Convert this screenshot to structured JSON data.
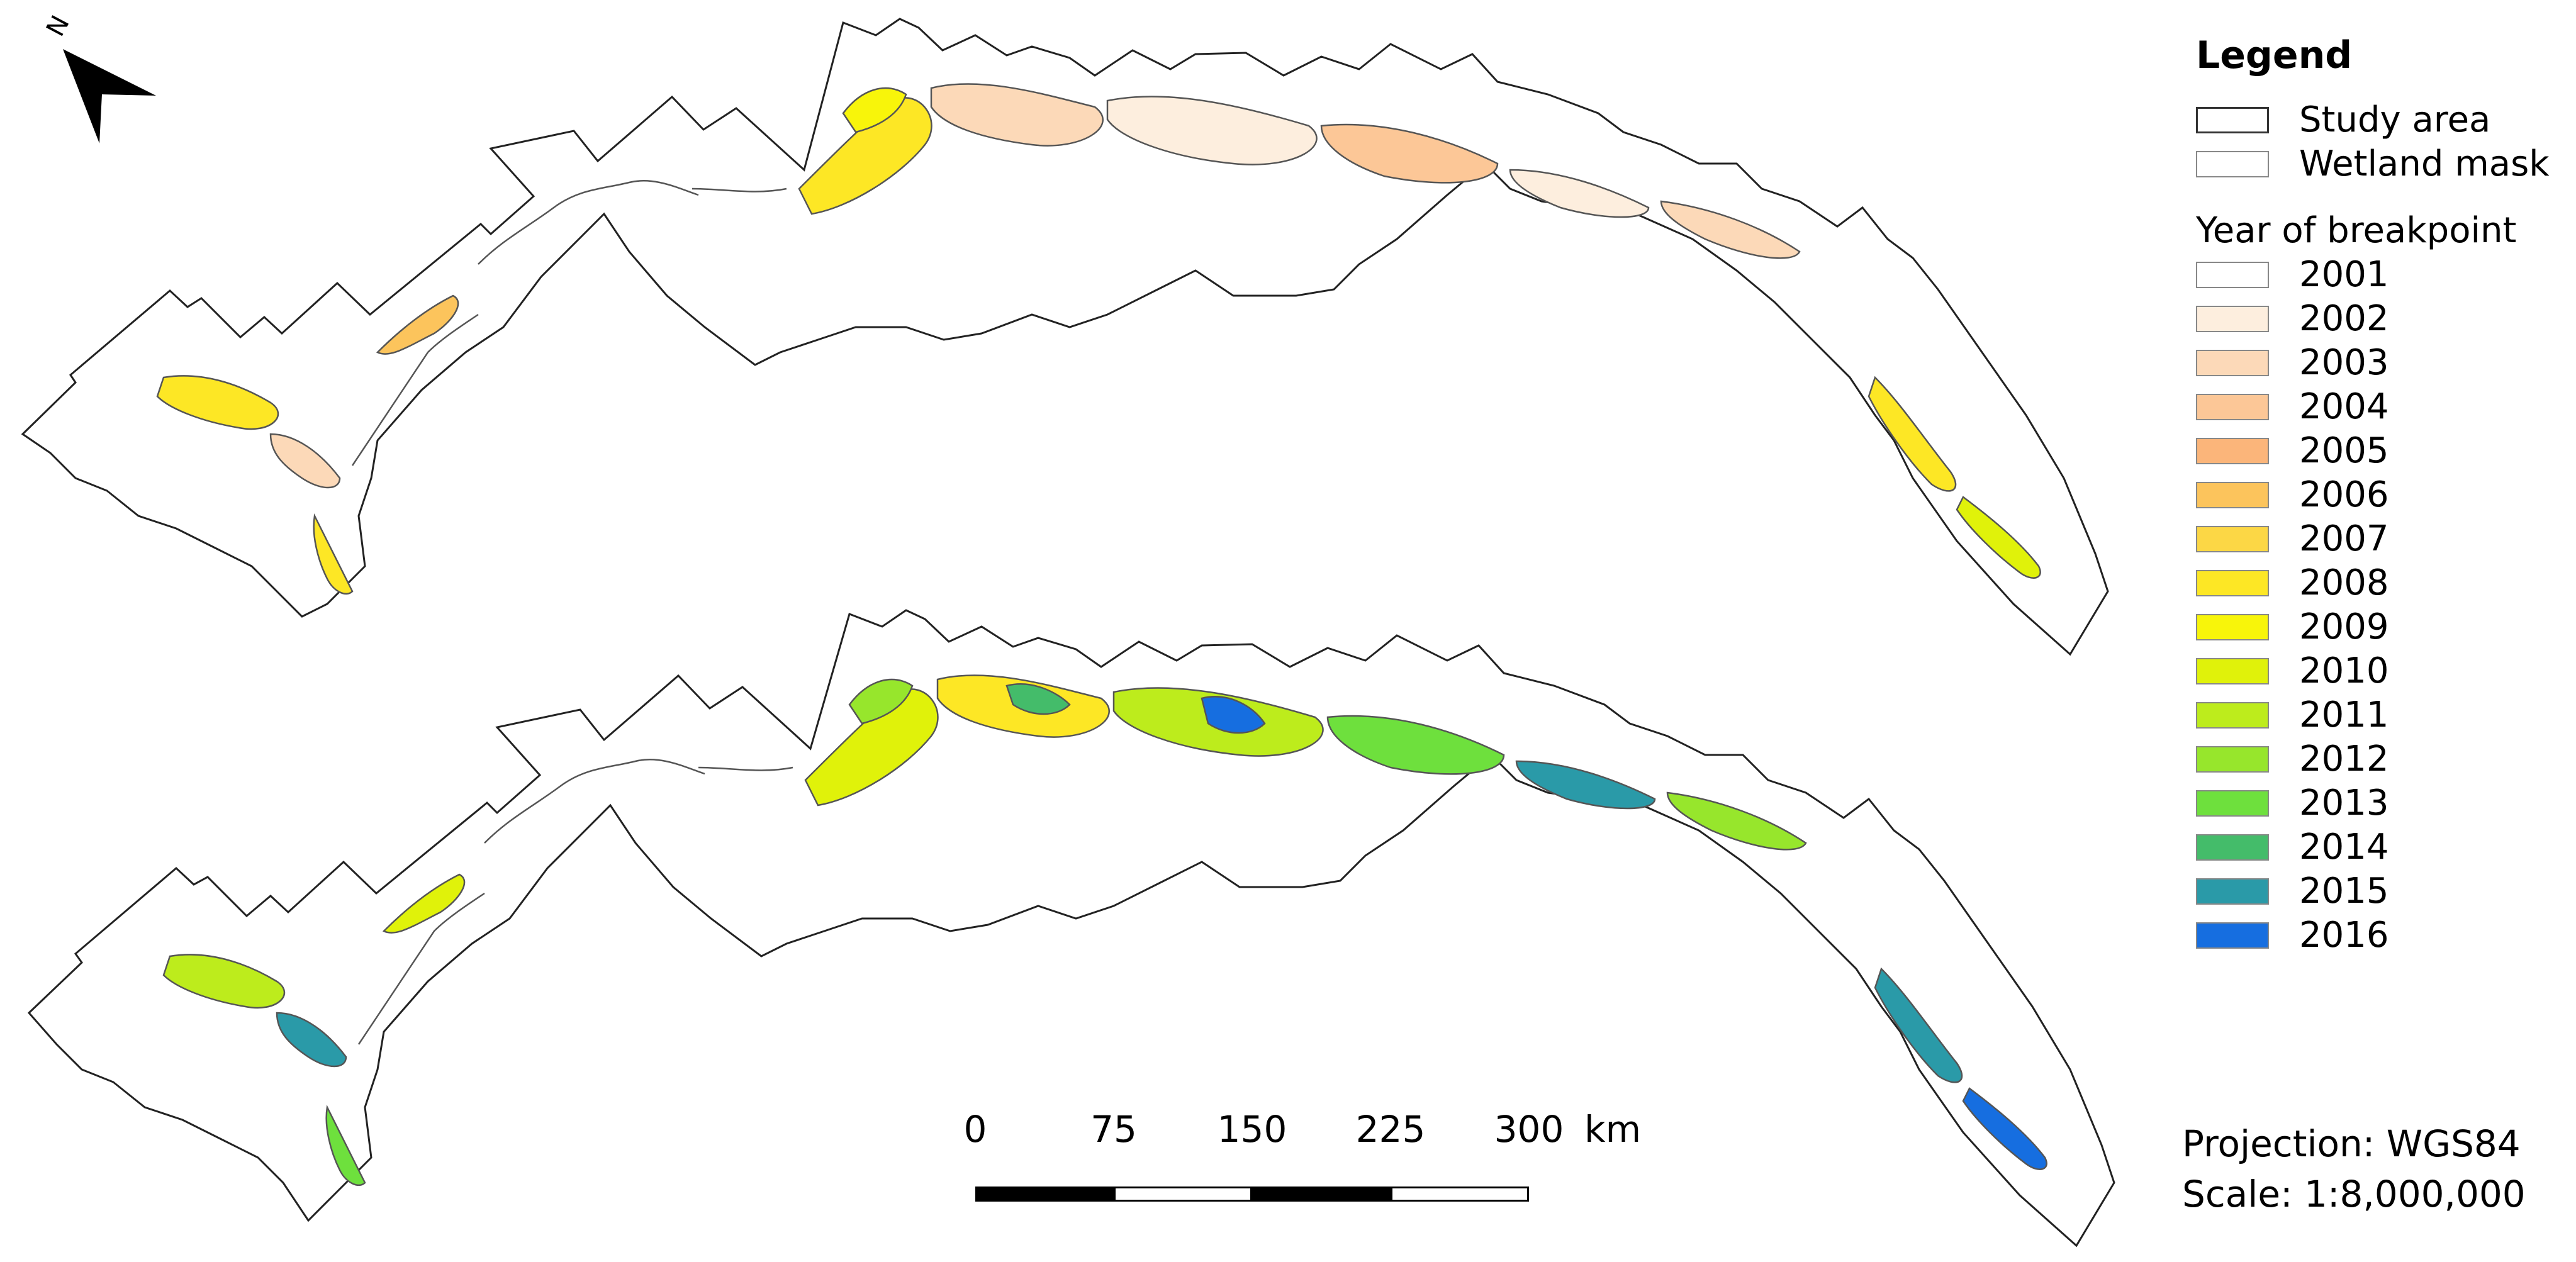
{
  "map": {
    "north_arrow_letter": "N",
    "colors": {
      "outline": "#222222",
      "wetland": "#555555"
    }
  },
  "legend": {
    "title": "Legend",
    "study_area_label": "Study area",
    "wetland_mask_label": "Wetland mask",
    "year_title": "Year of breakpoint",
    "years": [
      {
        "label": "2001",
        "color": "#ffffff"
      },
      {
        "label": "2002",
        "color": "#fdeede"
      },
      {
        "label": "2003",
        "color": "#fcd9b8"
      },
      {
        "label": "2004",
        "color": "#fcc797"
      },
      {
        "label": "2005",
        "color": "#fbb57a"
      },
      {
        "label": "2006",
        "color": "#fcc45c"
      },
      {
        "label": "2007",
        "color": "#fcd745"
      },
      {
        "label": "2008",
        "color": "#fde725"
      },
      {
        "label": "2009",
        "color": "#f8f50a"
      },
      {
        "label": "2010",
        "color": "#e0f20a"
      },
      {
        "label": "2011",
        "color": "#bdec1c"
      },
      {
        "label": "2012",
        "color": "#97e62c"
      },
      {
        "label": "2013",
        "color": "#6ee03d"
      },
      {
        "label": "2014",
        "color": "#44bc6a"
      },
      {
        "label": "2015",
        "color": "#2a9aa8"
      },
      {
        "label": "2016",
        "color": "#166ee0"
      }
    ]
  },
  "scalebar": {
    "ticks": [
      "0",
      "75",
      "150",
      "225",
      "300"
    ],
    "units": "km"
  },
  "footer": {
    "projection": "Projection: WGS84",
    "scale": "Scale: 1:8,000,000"
  }
}
